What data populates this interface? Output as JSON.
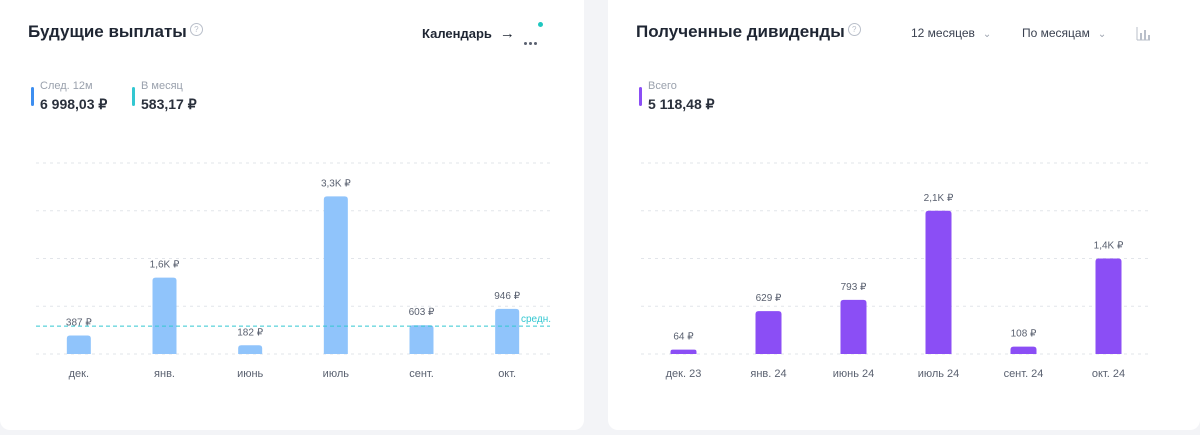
{
  "future": {
    "title": "Будущие выплаты",
    "calendar_label": "Календарь",
    "stats": [
      {
        "label": "След. 12м",
        "value": "6 998,03 ₽",
        "color": "#3d8ef0"
      },
      {
        "label": "В месяц",
        "value": "583,17 ₽",
        "color": "#33c7d1"
      }
    ],
    "avg_label": "средн."
  },
  "received": {
    "title": "Полученные дивиденды",
    "period_select": "12 месяцев",
    "group_select": "По месяцам",
    "stats": [
      {
        "label": "Всего",
        "value": "5 118,48 ₽",
        "color": "#8b4ef5"
      }
    ]
  },
  "chart_data": [
    {
      "type": "bar",
      "categories": [
        "дек.",
        "янв.",
        "июнь",
        "июль",
        "сент.",
        "окт."
      ],
      "values": [
        387,
        1600,
        182,
        3300,
        603,
        946
      ],
      "data_labels": [
        "387 ₽",
        "1,6K ₽",
        "182 ₽",
        "3,3K ₽",
        "603 ₽",
        "946 ₽"
      ],
      "average": 583.17,
      "color": "#90c4fb",
      "ylim": [
        0,
        4000
      ],
      "grid": true
    },
    {
      "type": "bar",
      "categories": [
        "дек. 23",
        "янв. 24",
        "июнь 24",
        "июль 24",
        "сент. 24",
        "окт. 24"
      ],
      "values": [
        64,
        629,
        793,
        2100,
        108,
        1400
      ],
      "data_labels": [
        "64 ₽",
        "629 ₽",
        "793 ₽",
        "2,1K ₽",
        "108 ₽",
        "1,4K ₽"
      ],
      "color": "#8b4ef5",
      "ylim": [
        0,
        2800
      ],
      "grid": true
    }
  ]
}
